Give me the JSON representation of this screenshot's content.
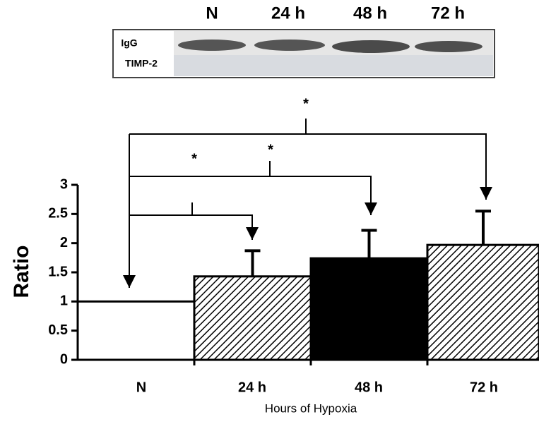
{
  "blot": {
    "lanes": [
      "N",
      "24 h",
      "48 h",
      "72 h"
    ],
    "rows": [
      "IgG",
      "TIMP-2"
    ]
  },
  "chart_data": {
    "type": "bar",
    "ylabel": "Ratio",
    "xlabel": "Hours of Hypoxia",
    "categories": [
      "N",
      "24 h",
      "48 h",
      "72 h"
    ],
    "values": [
      1.0,
      1.43,
      1.74,
      1.97
    ],
    "errors": [
      0,
      0.44,
      0.48,
      0.58
    ],
    "fills": [
      "#ffffff",
      "hatch",
      "#000000",
      "hatch"
    ],
    "ylim": [
      0,
      3
    ],
    "yticks": [
      0,
      0.5,
      1,
      1.5,
      2,
      2.5,
      3
    ],
    "annotations": [
      "*",
      "*",
      "*"
    ]
  }
}
